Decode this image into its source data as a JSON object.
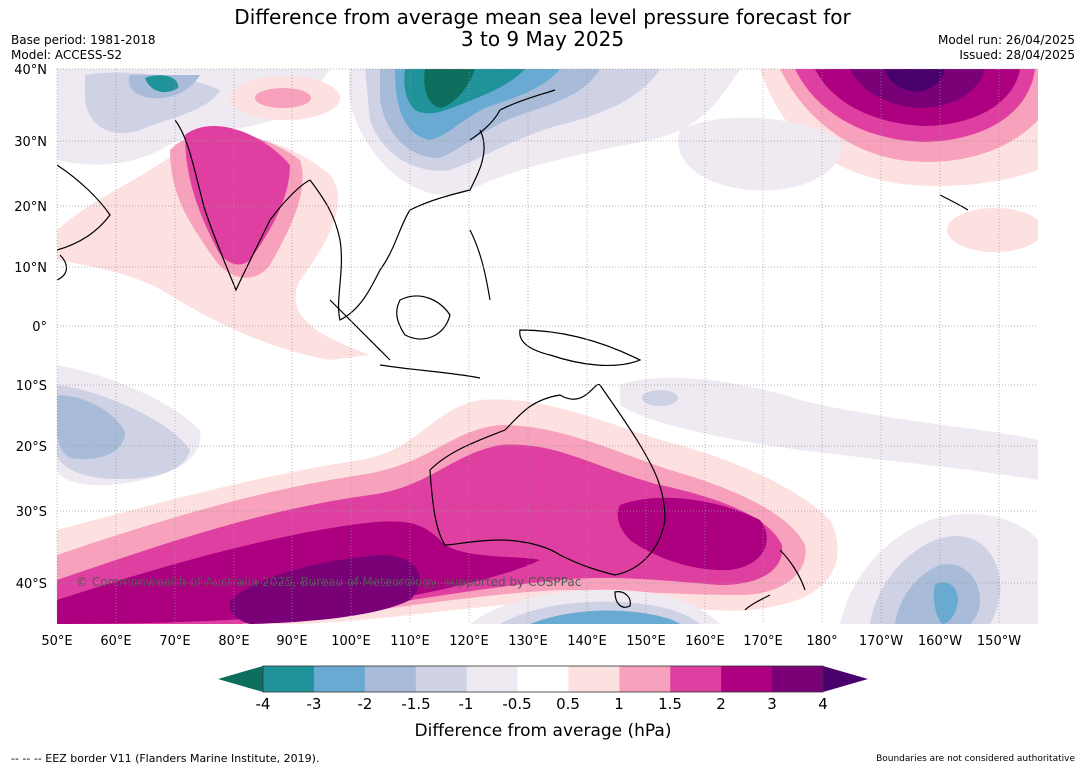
{
  "title_line1": "Difference from average mean sea level pressure forecast for",
  "title_line2": "3 to 9 May 2025",
  "meta": {
    "base_period": "Base period: 1981-2018",
    "model": "Model: ACCESS-S2",
    "model_run": "Model run: 26/04/2025",
    "issued": "Issued: 28/04/2025"
  },
  "map": {
    "lat_labels": [
      "40°N",
      "30°N",
      "20°N",
      "10°N",
      "0°",
      "10°S",
      "20°S",
      "30°S",
      "40°S"
    ],
    "lon_labels": [
      "50°E",
      "60°E",
      "70°E",
      "80°E",
      "90°E",
      "100°E",
      "110°E",
      "120°E",
      "130°E",
      "140°E",
      "150°E",
      "160°E",
      "170°E",
      "180°",
      "170°W",
      "160°W",
      "150°W"
    ],
    "copyright": "© Commonwealth of Australia 2025, Bureau of Meteorology, supported by COSPPac"
  },
  "colorbar": {
    "label": "Difference from average (hPa)",
    "ticks": [
      "-4",
      "-3",
      "-2",
      "-1.5",
      "-1",
      "-0.5",
      "0.5",
      "1",
      "1.5",
      "2",
      "3",
      "4"
    ],
    "colors": [
      "#0e6e5e",
      "#1f9399",
      "#68aad1",
      "#a8bcd9",
      "#cfd1e5",
      "#efe9f2",
      "#ffffff",
      "#fde0e0",
      "#f7a1bd",
      "#de3fa0",
      "#ad0080",
      "#7a0078",
      "#4a006a"
    ]
  },
  "footer": {
    "eez": "--  --  -- EEZ border V11 (Flanders Marine Institute, 2019).",
    "boundaries": "Boundaries are not considered authoritative"
  }
}
